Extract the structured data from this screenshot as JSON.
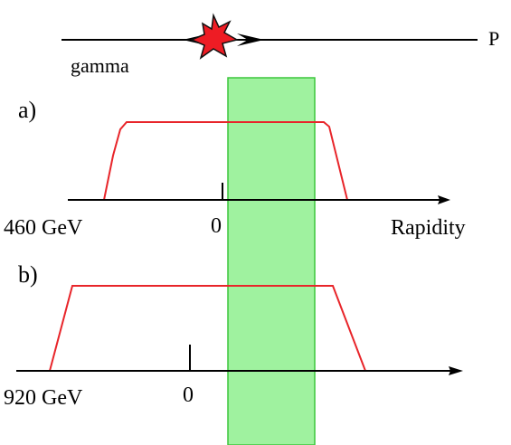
{
  "top": {
    "beam_left_label": "gamma",
    "beam_right_label": "P"
  },
  "panel_a": {
    "label": "a)",
    "energy_label": "460 GeV",
    "zero_label": "0",
    "axis_label": "Rapidity"
  },
  "panel_b": {
    "label": "b)",
    "energy_label": "920 GeV",
    "zero_label": "0"
  },
  "colors": {
    "curve": "#e8252a",
    "band": "#8ef08e",
    "band_edge": "#3cc63c",
    "star": "#ee1c24",
    "axis": "#000000"
  }
}
